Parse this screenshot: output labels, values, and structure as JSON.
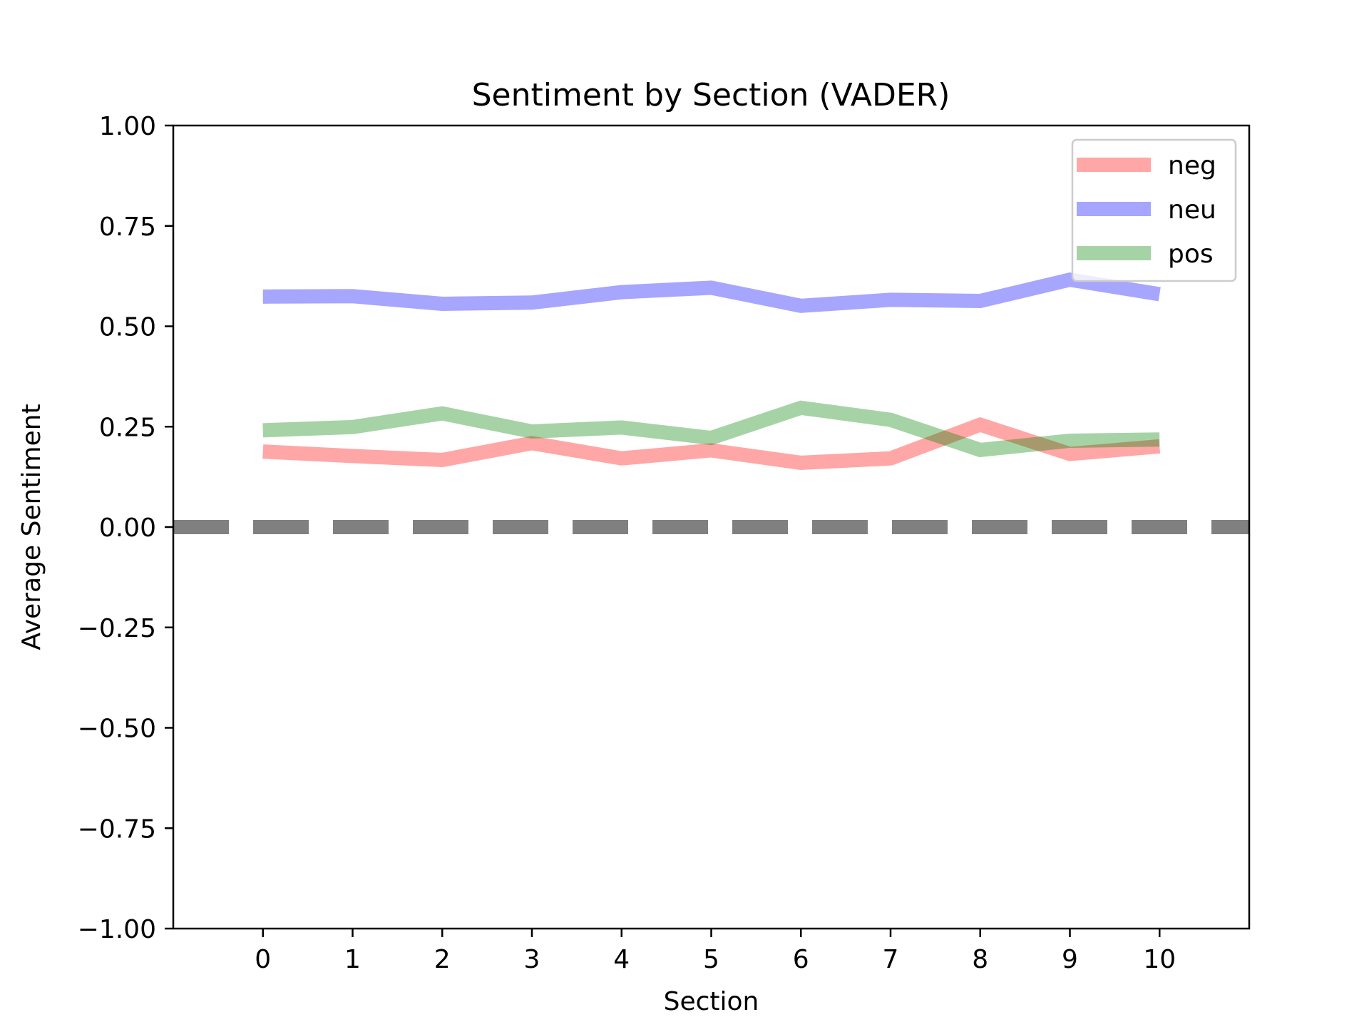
{
  "chart_data": {
    "type": "line",
    "title": "Sentiment by Section (VADER)",
    "xlabel": "Section",
    "ylabel": "Average Sentiment",
    "x": [
      0,
      1,
      2,
      3,
      4,
      5,
      6,
      7,
      8,
      9,
      10
    ],
    "xlim": [
      -1,
      11
    ],
    "ylim": [
      -1.0,
      1.0
    ],
    "x_ticks": [
      0,
      1,
      2,
      3,
      4,
      5,
      6,
      7,
      8,
      9,
      10
    ],
    "x_tick_labels": [
      "0",
      "1",
      "2",
      "3",
      "4",
      "5",
      "6",
      "7",
      "8",
      "9",
      "10"
    ],
    "y_ticks": [
      -1.0,
      -0.75,
      -0.5,
      -0.25,
      0.0,
      0.25,
      0.5,
      0.75,
      1.0
    ],
    "y_tick_labels": [
      "−1.00",
      "−0.75",
      "−0.50",
      "−0.25",
      "0.00",
      "0.25",
      "0.50",
      "0.75",
      "1.00"
    ],
    "grid": false,
    "legend_position": "upper right",
    "series": [
      {
        "name": "neg",
        "color": "#ff0000",
        "alpha": 0.35,
        "values": [
          0.188,
          0.177,
          0.167,
          0.209,
          0.171,
          0.191,
          0.16,
          0.171,
          0.255,
          0.182,
          0.201
        ]
      },
      {
        "name": "neu",
        "color": "#0000ff",
        "alpha": 0.35,
        "values": [
          0.574,
          0.575,
          0.556,
          0.559,
          0.585,
          0.596,
          0.551,
          0.566,
          0.563,
          0.616,
          0.58
        ]
      },
      {
        "name": "pos",
        "color": "#008000",
        "alpha": 0.35,
        "values": [
          0.241,
          0.249,
          0.283,
          0.238,
          0.248,
          0.222,
          0.297,
          0.267,
          0.192,
          0.215,
          0.218
        ]
      }
    ],
    "reference_line": {
      "y": 0.0,
      "style": "dashed",
      "color": "#808080"
    }
  }
}
